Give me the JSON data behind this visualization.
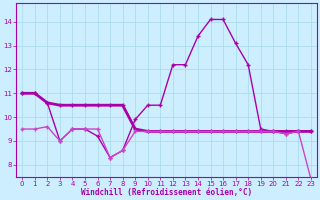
{
  "background_color": "#cceeff",
  "grid_color": "#aaddee",
  "line_color1": "#aa00aa",
  "line_color2": "#cc44cc",
  "line_color3": "#cc44cc",
  "xlabel": "Windchill (Refroidissement éolien,°C)",
  "xlim": [
    -0.5,
    23.5
  ],
  "ylim": [
    7.5,
    14.8
  ],
  "yticks": [
    8,
    9,
    10,
    11,
    12,
    13,
    14
  ],
  "xticks": [
    0,
    1,
    2,
    3,
    4,
    5,
    6,
    7,
    8,
    9,
    10,
    11,
    12,
    13,
    14,
    15,
    16,
    17,
    18,
    19,
    20,
    21,
    22,
    23
  ],
  "line1_x": [
    0,
    1,
    2,
    3,
    4,
    5,
    6,
    7,
    8,
    9,
    10,
    11,
    12,
    13,
    14,
    15,
    16,
    17,
    18,
    19,
    20,
    21,
    22,
    23
  ],
  "line1_y": [
    11.0,
    11.0,
    10.6,
    9.0,
    9.5,
    9.5,
    9.2,
    8.3,
    8.6,
    9.9,
    10.5,
    10.5,
    12.2,
    12.2,
    13.4,
    14.1,
    14.1,
    13.1,
    12.2,
    9.5,
    9.4,
    9.3,
    9.4,
    9.4
  ],
  "line2_x": [
    0,
    1,
    2,
    3,
    4,
    5,
    6,
    7,
    8,
    9,
    10,
    11,
    12,
    13,
    14,
    15,
    16,
    17,
    18,
    19,
    20,
    21,
    22,
    23
  ],
  "line2_y": [
    9.5,
    9.5,
    9.6,
    9.0,
    9.5,
    9.5,
    9.5,
    8.3,
    8.6,
    9.4,
    9.4,
    9.4,
    9.4,
    9.4,
    9.4,
    9.4,
    9.4,
    9.4,
    9.4,
    9.4,
    9.4,
    9.3,
    9.4,
    7.4
  ],
  "line3_x": [
    0,
    1,
    2,
    3,
    4,
    5,
    6,
    7,
    8,
    9,
    10,
    11,
    12,
    13,
    14,
    15,
    16,
    17,
    18,
    19,
    20,
    21,
    22,
    23
  ],
  "line3_y": [
    11.0,
    11.0,
    10.6,
    10.5,
    10.5,
    10.5,
    10.5,
    10.5,
    10.5,
    9.5,
    9.4,
    9.4,
    9.4,
    9.4,
    9.4,
    9.4,
    9.4,
    9.4,
    9.4,
    9.4,
    9.4,
    9.4,
    9.4,
    9.4
  ],
  "markersize": 2.0,
  "linewidth1": 1.0,
  "linewidth2": 1.0,
  "linewidth3": 2.0,
  "tick_fontsize": 5.0,
  "label_fontsize": 5.5
}
